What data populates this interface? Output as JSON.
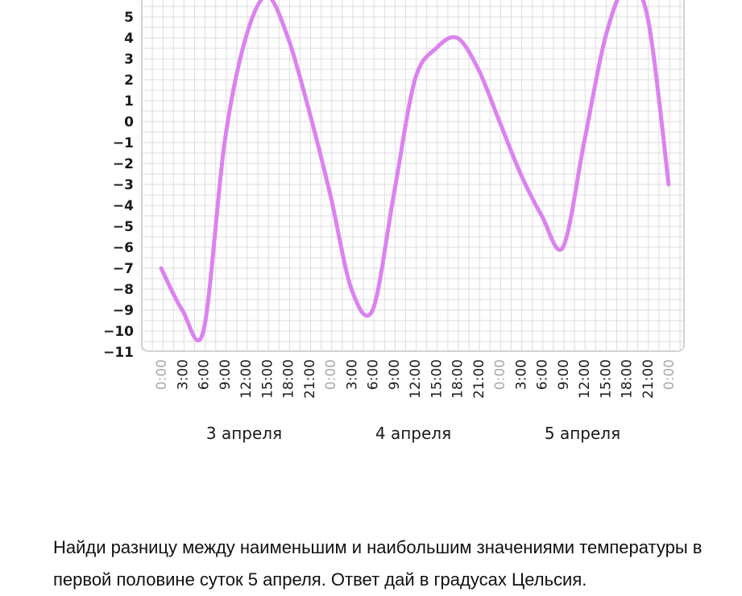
{
  "chart_data": {
    "type": "line",
    "y_ticks": [
      5,
      4,
      3,
      2,
      1,
      0,
      -1,
      -2,
      -3,
      -4,
      -5,
      -6,
      -7,
      -8,
      -9,
      -10,
      -11
    ],
    "y_tick_labels": [
      "5",
      "4",
      "3",
      "2",
      "1",
      "0",
      "−1",
      "−2",
      "−3",
      "−4",
      "−5",
      "−6",
      "−7",
      "−8",
      "−9",
      "−10",
      "−11"
    ],
    "ylim": [
      -11,
      6
    ],
    "x_tick_labels": [
      "0:00",
      "3:00",
      "6:00",
      "9:00",
      "12:00",
      "15:00",
      "18:00",
      "21:00",
      "0:00",
      "3:00",
      "6:00",
      "9:00",
      "12:00",
      "15:00",
      "18:00",
      "21:00",
      "0:00",
      "3:00",
      "6:00",
      "9:00",
      "12:00",
      "15:00",
      "18:00",
      "21:00",
      "0:00"
    ],
    "x_tick_muted": [
      true,
      false,
      false,
      false,
      false,
      false,
      false,
      false,
      true,
      false,
      false,
      false,
      false,
      false,
      false,
      false,
      true,
      false,
      false,
      false,
      false,
      false,
      false,
      false,
      true
    ],
    "day_labels": [
      "3 апреля",
      "4 апреля",
      "5 апреля"
    ],
    "grid": true,
    "line_color": "#dc82f0",
    "series": [
      {
        "x": [
          0,
          3,
          6,
          9,
          12,
          15,
          18,
          21,
          24,
          27,
          30,
          33,
          36,
          39,
          42,
          45,
          48,
          51,
          54,
          57,
          60,
          63,
          66,
          69,
          72
        ],
        "values": [
          -7,
          -9,
          -10,
          -1,
          4,
          6,
          4,
          0.5,
          -3.5,
          -8,
          -9,
          -3.5,
          2,
          3.5,
          4,
          2.5,
          0,
          -2.5,
          -4.5,
          -6,
          -1,
          4,
          6.5,
          5,
          -3
        ]
      }
    ]
  },
  "question": {
    "line1": "Найди разницу между наименьшим и наибольшим значениями температуры в",
    "line2": "первой половине суток 5 апреля. Ответ дай в градусах Цельсия."
  }
}
